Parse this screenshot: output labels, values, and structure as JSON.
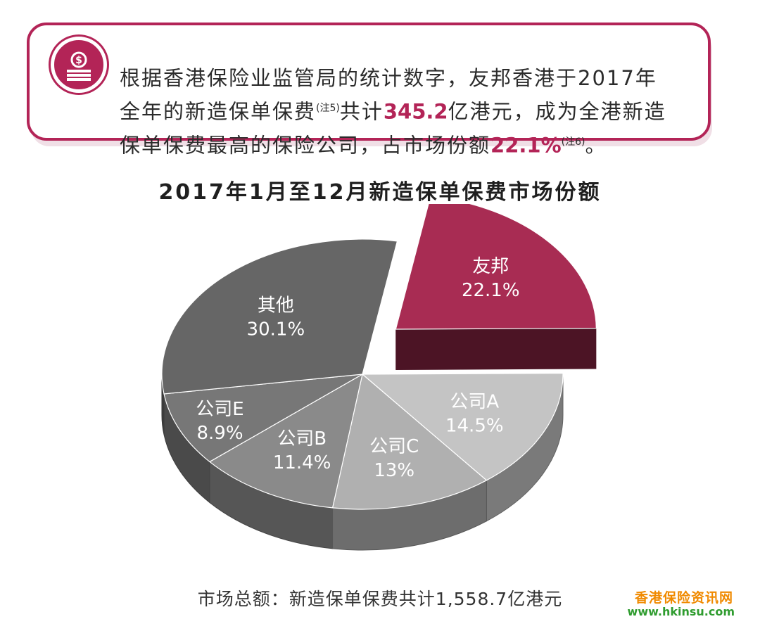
{
  "callout": {
    "line1": "根据香港保险业监管局的统计数字，友邦香港于2017年",
    "line2_pre": "全年的新造保单保费",
    "line2_note": "(注5)",
    "line2_mid": "共计",
    "line2_amount": "345.2",
    "line2_post": "亿港元，成为全港新造",
    "line3_pre": "保单保费最高的保险公司，占市场份额",
    "line3_share": "22.1%",
    "line3_note": "(注6)",
    "line3_post": "。",
    "icon": "money-stack-icon"
  },
  "chart_data": {
    "type": "pie",
    "title": "2017年1月至12月新造保单保费市场份额",
    "slices": [
      {
        "label": "友邦",
        "value": 22.1,
        "value_text": "22.1%",
        "color": "#a82c53",
        "exploded": true
      },
      {
        "label": "公司A",
        "value": 14.5,
        "value_text": "14.5%",
        "color": "#c4c4c4"
      },
      {
        "label": "公司C",
        "value": 13,
        "value_text": "13%",
        "color": "#b0b0b0"
      },
      {
        "label": "公司B",
        "value": 11.4,
        "value_text": "11.4%",
        "color": "#8a8a8a"
      },
      {
        "label": "公司E",
        "value": 8.9,
        "value_text": "8.9%",
        "color": "#777777"
      },
      {
        "label": "其他",
        "value": 30.1,
        "value_text": "30.1%",
        "color": "#666666"
      }
    ],
    "total_text": "市场总额：新造保单保费共计1,558.7亿港元"
  },
  "watermark": {
    "cn": "香港保险资讯网",
    "url": "www.hkinsu.com"
  },
  "colors": {
    "accent": "#b32457"
  }
}
